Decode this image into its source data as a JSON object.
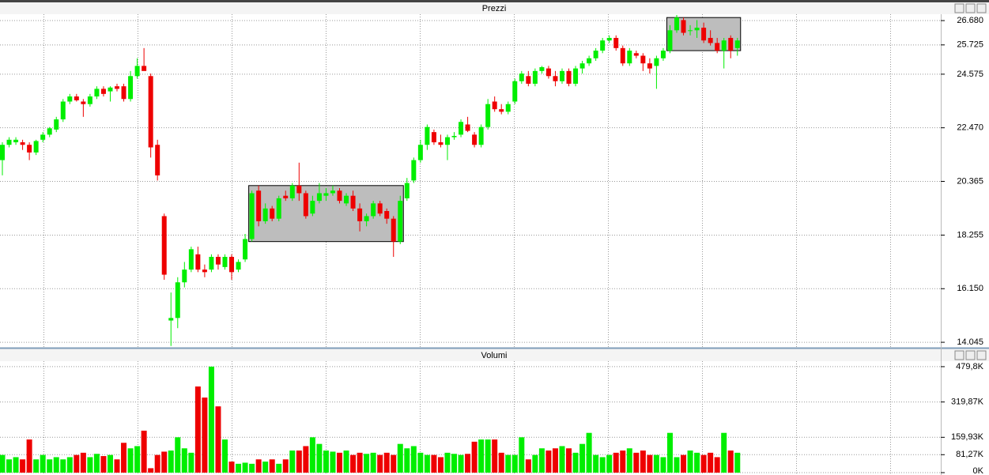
{
  "chart_data": [
    {
      "type": "candlestick",
      "title": "Prezzi",
      "open": [
        21.2,
        21.8,
        21.9,
        21.9,
        21.8,
        21.5,
        22.0,
        22.2,
        22.4,
        22.8,
        23.5,
        23.7,
        23.5,
        23.4,
        23.7,
        24.0,
        23.9,
        24.1,
        24.1,
        23.6,
        24.5,
        24.9,
        24.5,
        21.8,
        19.0,
        14.9,
        15.0,
        16.4,
        16.9,
        17.5,
        16.9,
        16.9,
        17.4,
        17.0,
        17.4,
        16.9,
        17.3,
        18.1,
        20.0,
        18.8,
        19.3,
        18.9,
        19.8,
        19.7,
        20.2,
        19.9,
        19.1,
        19.6,
        19.8,
        19.9,
        20.0,
        19.5,
        19.8,
        19.3,
        18.8,
        19.0,
        19.5,
        19.2,
        18.9,
        18.0,
        19.7,
        20.4,
        21.2,
        21.8,
        22.3,
        21.9,
        21.8,
        22.1,
        22.2,
        22.6,
        22.2,
        21.8,
        22.5,
        23.5,
        23.2,
        23.1,
        23.5,
        24.3,
        24.5,
        24.2,
        24.7,
        24.8,
        24.5,
        24.3,
        24.7,
        24.2,
        24.8,
        25.0,
        25.2,
        25.5,
        25.9,
        26.0,
        25.6,
        25.0,
        25.4,
        25.3,
        25.0,
        24.9,
        25.2,
        25.5,
        26.3,
        26.7,
        26.3,
        26.3,
        26.4,
        26.0,
        25.8,
        25.5,
        26.0,
        25.6
      ],
      "high": [
        21.9,
        22.1,
        22.1,
        22.0,
        21.9,
        22.0,
        22.3,
        22.5,
        22.9,
        23.6,
        23.8,
        23.8,
        23.6,
        23.8,
        24.1,
        24.1,
        24.1,
        24.2,
        24.2,
        24.7,
        25.2,
        25.6,
        24.6,
        22.0,
        19.1,
        16.0,
        16.6,
        17.2,
        17.8,
        17.8,
        17.1,
        17.5,
        17.5,
        17.5,
        17.5,
        17.3,
        18.3,
        20.0,
        20.2,
        19.5,
        19.4,
        19.8,
        20.0,
        20.3,
        21.1,
        20.0,
        19.8,
        20.3,
        20.1,
        20.2,
        20.1,
        19.9,
        20.0,
        19.5,
        19.1,
        19.6,
        19.6,
        19.3,
        19.0,
        19.8,
        20.5,
        21.3,
        22.0,
        22.6,
        22.4,
        22.2,
        22.2,
        22.3,
        22.8,
        22.9,
        22.3,
        22.6,
        23.6,
        23.7,
        23.4,
        23.5,
        24.4,
        24.7,
        24.7,
        24.8,
        24.9,
        24.9,
        24.7,
        24.8,
        24.8,
        24.9,
        25.1,
        25.3,
        25.6,
        26.0,
        26.1,
        26.1,
        25.7,
        25.6,
        25.5,
        25.4,
        25.2,
        25.3,
        25.6,
        26.5,
        26.9,
        26.8,
        26.5,
        26.7,
        26.6,
        26.3,
        26.0,
        26.0,
        26.1,
        26.0
      ],
      "low": [
        20.6,
        21.7,
        21.8,
        21.6,
        21.2,
        21.4,
        21.9,
        22.1,
        22.3,
        22.7,
        23.4,
        23.5,
        22.9,
        23.3,
        23.6,
        23.7,
        23.5,
        23.9,
        23.5,
        23.5,
        24.4,
        24.8,
        21.3,
        20.4,
        16.5,
        13.9,
        14.6,
        16.2,
        16.8,
        16.8,
        16.6,
        16.8,
        16.9,
        16.9,
        16.5,
        16.8,
        17.2,
        18.0,
        18.6,
        18.7,
        18.8,
        18.8,
        19.6,
        19.6,
        19.6,
        18.9,
        19.0,
        19.5,
        19.6,
        19.8,
        19.5,
        19.4,
        19.2,
        18.4,
        18.6,
        18.9,
        19.0,
        18.7,
        17.4,
        17.9,
        19.6,
        20.3,
        21.1,
        21.6,
        21.8,
        21.7,
        21.2,
        22.0,
        22.1,
        22.3,
        21.7,
        21.7,
        22.4,
        23.1,
        23.0,
        23.0,
        23.4,
        24.2,
        24.1,
        24.1,
        24.6,
        24.4,
        24.1,
        24.2,
        24.1,
        24.1,
        24.6,
        24.9,
        25.1,
        25.4,
        25.8,
        25.5,
        24.9,
        24.9,
        25.2,
        24.7,
        24.6,
        24.0,
        25.1,
        25.4,
        26.2,
        26.1,
        26.1,
        26.0,
        25.8,
        25.7,
        25.4,
        24.8,
        25.2,
        25.3
      ],
      "close": [
        21.8,
        22.0,
        22.0,
        21.8,
        21.5,
        21.95,
        22.2,
        22.45,
        22.8,
        23.5,
        23.7,
        23.55,
        23.4,
        23.7,
        24.0,
        23.8,
        24.05,
        24.0,
        23.6,
        24.5,
        24.9,
        24.7,
        21.7,
        20.6,
        16.7,
        15.0,
        16.4,
        16.9,
        17.7,
        16.9,
        16.8,
        17.4,
        17.1,
        17.4,
        16.8,
        17.2,
        18.1,
        19.9,
        18.8,
        19.3,
        18.9,
        19.7,
        19.7,
        20.2,
        19.9,
        19.0,
        19.6,
        19.9,
        19.9,
        20.0,
        19.6,
        19.8,
        19.3,
        18.8,
        19.0,
        19.5,
        19.1,
        18.9,
        18.0,
        19.6,
        20.3,
        21.2,
        21.8,
        22.5,
        21.9,
        21.8,
        22.1,
        22.15,
        22.7,
        22.35,
        21.8,
        22.5,
        23.4,
        23.2,
        23.1,
        23.4,
        24.3,
        24.6,
        24.2,
        24.7,
        24.85,
        24.5,
        24.3,
        24.7,
        24.2,
        24.8,
        25.0,
        25.2,
        25.5,
        25.9,
        26.0,
        25.6,
        25.0,
        25.5,
        25.3,
        25.0,
        24.8,
        25.2,
        25.5,
        26.3,
        26.8,
        26.2,
        26.3,
        26.4,
        25.9,
        25.8,
        25.5,
        25.9,
        25.5,
        25.9
      ],
      "ylim": [
        13.83,
        26.93
      ],
      "yticks": [
        {
          "value": 26.68,
          "label": "26.680"
        },
        25.725,
        24.575,
        {
          "value": 22.47,
          "label": "22.470"
        },
        20.365,
        18.255,
        {
          "value": 16.15,
          "label": "16.150"
        },
        14.045
      ],
      "up_color": "#00ee00",
      "down_color": "#ee0000",
      "grid": true
    },
    {
      "type": "bar",
      "title": "Volumi",
      "values": [
        80000,
        60000,
        70000,
        60000,
        150000,
        60000,
        80000,
        60000,
        70000,
        60000,
        70000,
        80000,
        90000,
        70000,
        85000,
        75000,
        80000,
        60000,
        135000,
        110000,
        120000,
        190000,
        20000,
        80000,
        95000,
        100000,
        160000,
        110000,
        90000,
        390000,
        340000,
        480000,
        300000,
        150000,
        50000,
        40000,
        45000,
        40000,
        60000,
        50000,
        60000,
        40000,
        60000,
        100000,
        100000,
        120000,
        160000,
        130000,
        100000,
        95000,
        90000,
        100000,
        80000,
        90000,
        85000,
        90000,
        80000,
        90000,
        80000,
        130000,
        110000,
        120000,
        90000,
        80000,
        80000,
        70000,
        90000,
        85000,
        80000,
        85000,
        140000,
        150000,
        150000,
        150000,
        90000,
        80000,
        80000,
        160000,
        60000,
        80000,
        110000,
        100000,
        110000,
        120000,
        110000,
        90000,
        130000,
        180000,
        80000,
        70000,
        80000,
        90000,
        100000,
        110000,
        90000,
        100000,
        80000,
        80000,
        70000,
        180000,
        70000,
        80000,
        100000,
        90000,
        80000,
        90000,
        70000,
        180000,
        100000,
        90000
      ],
      "ylim": [
        0,
        501000
      ],
      "yticks": [
        {
          "value": 479800,
          "label": "479,8K"
        },
        {
          "value": 319870,
          "label": "319,87K"
        },
        {
          "value": 159930,
          "label": "159,93K"
        },
        {
          "value": 81270,
          "label": "81,27K"
        },
        {
          "value": 0,
          "label": "0K"
        }
      ],
      "grid": true
    }
  ]
}
